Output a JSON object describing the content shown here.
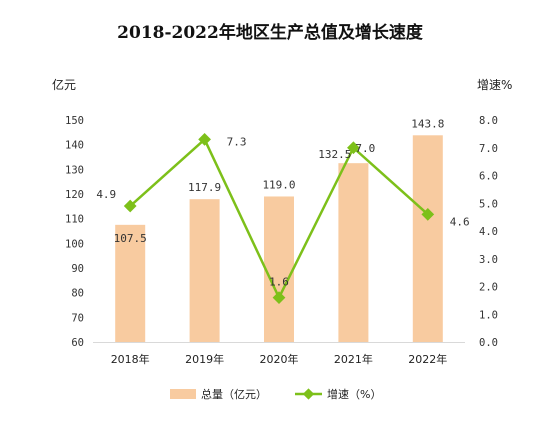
{
  "chart_data": {
    "type": "bar",
    "title": "2018-2022年地区生产总值及增长速度",
    "ylabel_left": "亿元",
    "ylabel_right": "增速%",
    "categories": [
      "2018年",
      "2019年",
      "2020年",
      "2021年",
      "2022年"
    ],
    "ylim_left": [
      60,
      150
    ],
    "yticks_left": [
      "60",
      "70",
      "80",
      "90",
      "100",
      "110",
      "120",
      "130",
      "140",
      "150"
    ],
    "ylim_right": [
      0,
      8
    ],
    "yticks_right": [
      "0.0",
      "1.0",
      "2.0",
      "3.0",
      "4.0",
      "5.0",
      "6.0",
      "7.0",
      "8.0"
    ],
    "grid": false,
    "legend_position": "bottom",
    "series": [
      {
        "name": "总量（亿元）",
        "type": "bar",
        "axis": "left",
        "color": "#F8CBA0",
        "values": [
          107.5,
          117.9,
          119.0,
          132.5,
          143.8
        ],
        "labels": [
          "107.5",
          "117.9",
          "119.0",
          "132.5",
          "143.8"
        ]
      },
      {
        "name": "增速（%）",
        "type": "line",
        "axis": "right",
        "color": "#7DC01A",
        "values": [
          4.9,
          7.3,
          1.6,
          7.0,
          4.6
        ],
        "labels": [
          "4.9",
          "7.3",
          "1.6",
          "7.0",
          "4.6"
        ]
      }
    ]
  }
}
